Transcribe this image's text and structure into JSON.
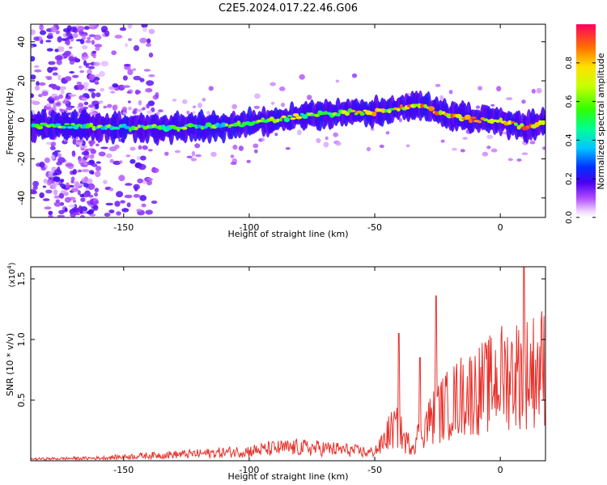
{
  "title": "C2E5.2024.017.22.46.G06",
  "colors": {
    "snr_line": "#e8302a",
    "background": "#ffffff"
  },
  "chart_data": [
    {
      "type": "heatmap",
      "xlabel": "Height of straight line (km)",
      "ylabel": "Frequency (Hz)",
      "xlim": [
        -187,
        18
      ],
      "ylim": [
        -50,
        49
      ],
      "xticks": [
        -150,
        -100,
        -50,
        0
      ],
      "yticks": [
        -40,
        -20,
        0,
        20,
        40
      ],
      "ridge": {
        "x": [
          -185,
          -170,
          -150,
          -130,
          -110,
          -100,
          -90,
          -80,
          -70,
          -60,
          -50,
          -45,
          -40,
          -35,
          -30,
          -25,
          -20,
          -15,
          -10,
          -5,
          0,
          5,
          10,
          15,
          18
        ],
        "freq": [
          -3,
          -3,
          -4,
          -4,
          -3,
          -2,
          0,
          2,
          3,
          4,
          4,
          5,
          6,
          7,
          7,
          4,
          2,
          1,
          0,
          0,
          -1,
          -2,
          -4,
          -2,
          -2
        ]
      },
      "colorbar": {
        "label": "Normalized spectral amplitude",
        "range": [
          0.0,
          1.0
        ],
        "ticks": [
          "0.0",
          "0.2",
          "0.4",
          "0.6",
          "0.8"
        ]
      },
      "grid": false
    },
    {
      "type": "line",
      "xlabel": "Height of straight line (km)",
      "ylabel": "SNR (10 * v/v)",
      "scale_label": "(x10",
      "scale_exp": "4",
      "scale_close": ")",
      "xlim": [
        -187,
        18
      ],
      "ylim": [
        0.0,
        1.6
      ],
      "xticks": [
        -150,
        -100,
        -50,
        0
      ],
      "yticks": [
        "0.5",
        "1.0",
        "1.5"
      ],
      "envelope": {
        "x": [
          -187,
          -160,
          -140,
          -120,
          -100,
          -90,
          -80,
          -70,
          -60,
          -52,
          -48,
          -45,
          -42,
          -40,
          -38,
          -35,
          -30,
          -25,
          -20,
          -15,
          -10,
          -5,
          0,
          5,
          10,
          15,
          18
        ],
        "y": [
          0.02,
          0.03,
          0.06,
          0.08,
          0.11,
          0.14,
          0.15,
          0.14,
          0.12,
          0.09,
          0.15,
          0.3,
          0.38,
          0.35,
          0.22,
          0.18,
          0.4,
          0.55,
          0.65,
          0.75,
          0.8,
          0.85,
          0.95,
          1.0,
          1.0,
          1.05,
          1.1
        ]
      },
      "spikes": [
        {
          "x": -40.5,
          "y": 1.05
        },
        {
          "x": -32,
          "y": 0.85
        },
        {
          "x": -25.5,
          "y": 1.36
        },
        {
          "x": 9.5,
          "y": 1.6
        }
      ],
      "grid": false
    }
  ]
}
